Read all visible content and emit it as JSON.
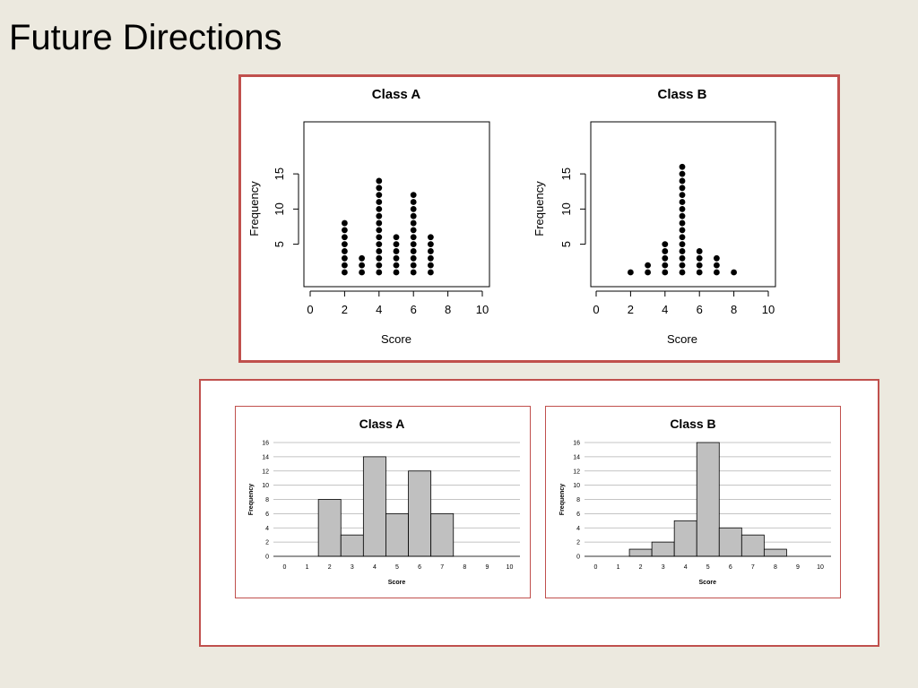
{
  "slide": {
    "title": "Future Directions"
  },
  "colors": {
    "panel_border": "#c0504d",
    "bar_fill": "#c0c0c0",
    "background": "#ece9df"
  },
  "chart_data": [
    {
      "type": "scatter",
      "style": "dot-plot",
      "title": "Class A",
      "xlabel": "Score",
      "ylabel": "Frequency",
      "xlim": [
        0,
        10
      ],
      "xticks": [
        0,
        2,
        4,
        6,
        8,
        10
      ],
      "yticks": [
        5,
        10,
        15
      ],
      "x": [
        2,
        3,
        4,
        5,
        6,
        7
      ],
      "counts": [
        8,
        3,
        14,
        6,
        12,
        6
      ]
    },
    {
      "type": "scatter",
      "style": "dot-plot",
      "title": "Class B",
      "xlabel": "Score",
      "ylabel": "Frequency",
      "xlim": [
        0,
        10
      ],
      "xticks": [
        0,
        2,
        4,
        6,
        8,
        10
      ],
      "yticks": [
        5,
        10,
        15
      ],
      "x": [
        2,
        3,
        4,
        5,
        6,
        7,
        8
      ],
      "counts": [
        1,
        2,
        5,
        16,
        4,
        3,
        1
      ]
    },
    {
      "type": "bar",
      "style": "histogram",
      "title": "Class A",
      "xlabel": "Score",
      "ylabel": "Frequency",
      "xticks": [
        0,
        1,
        2,
        3,
        4,
        5,
        6,
        7,
        8,
        9,
        10
      ],
      "yticks": [
        0,
        2,
        4,
        6,
        8,
        10,
        12,
        14,
        16
      ],
      "ylim": [
        0,
        16
      ],
      "grid": true,
      "categories": [
        2,
        3,
        4,
        5,
        6,
        7
      ],
      "values": [
        8,
        3,
        14,
        6,
        12,
        6
      ]
    },
    {
      "type": "bar",
      "style": "histogram",
      "title": "Class B",
      "xlabel": "Score",
      "ylabel": "Frequency",
      "xticks": [
        0,
        1,
        2,
        3,
        4,
        5,
        6,
        7,
        8,
        9,
        10
      ],
      "yticks": [
        0,
        2,
        4,
        6,
        8,
        10,
        12,
        14,
        16
      ],
      "ylim": [
        0,
        16
      ],
      "grid": true,
      "categories": [
        2,
        3,
        4,
        5,
        6,
        7,
        8
      ],
      "values": [
        1,
        2,
        5,
        16,
        4,
        3,
        1
      ]
    }
  ]
}
